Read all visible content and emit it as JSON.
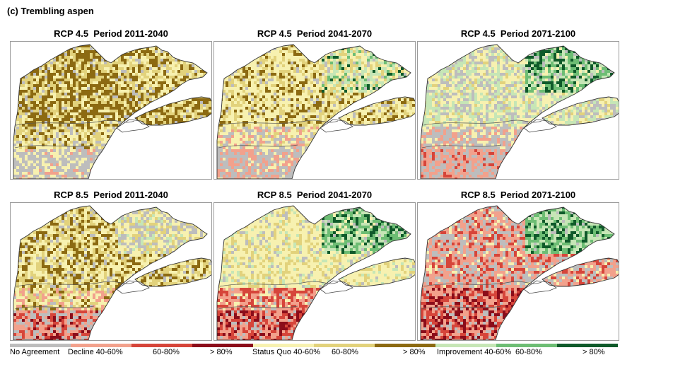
{
  "figure_title": "(c)  Trembling aspen",
  "panels": [
    {
      "title": "RCP 4.5  Period 2011-2040",
      "scenario": "RCP 4.5",
      "period": "2011-2040"
    },
    {
      "title": "RCP 4.5  Period 2041-2070",
      "scenario": "RCP 4.5",
      "period": "2041-2070"
    },
    {
      "title": "RCP 4.5  Period 2071-2100",
      "scenario": "RCP 4.5",
      "period": "2071-2100"
    },
    {
      "title": "RCP 8.5  Period 2011-2040",
      "scenario": "RCP 8.5",
      "period": "2011-2040"
    },
    {
      "title": "RCP 8.5  Period 2041-2070",
      "scenario": "RCP 8.5",
      "period": "2041-2070"
    },
    {
      "title": "RCP 8.5  Period 2071-2100",
      "scenario": "RCP 8.5",
      "period": "2071-2100"
    }
  ],
  "legend": {
    "labels": [
      "No Agreement",
      "Decline 40-60%",
      "60-80%",
      "> 80%",
      "Status Quo 40-60%",
      "60-80%",
      "> 80%",
      "Improvement 40-60%",
      "60-80%",
      "> 80%"
    ],
    "colors": [
      "#bdbdbd",
      "#f2a18c",
      "#d6453a",
      "#8b0d1a",
      "#f7f1b0",
      "#e2d27c",
      "#8c6a12",
      "#c6e6b6",
      "#6dbd74",
      "#0f5a2a"
    ]
  }
}
